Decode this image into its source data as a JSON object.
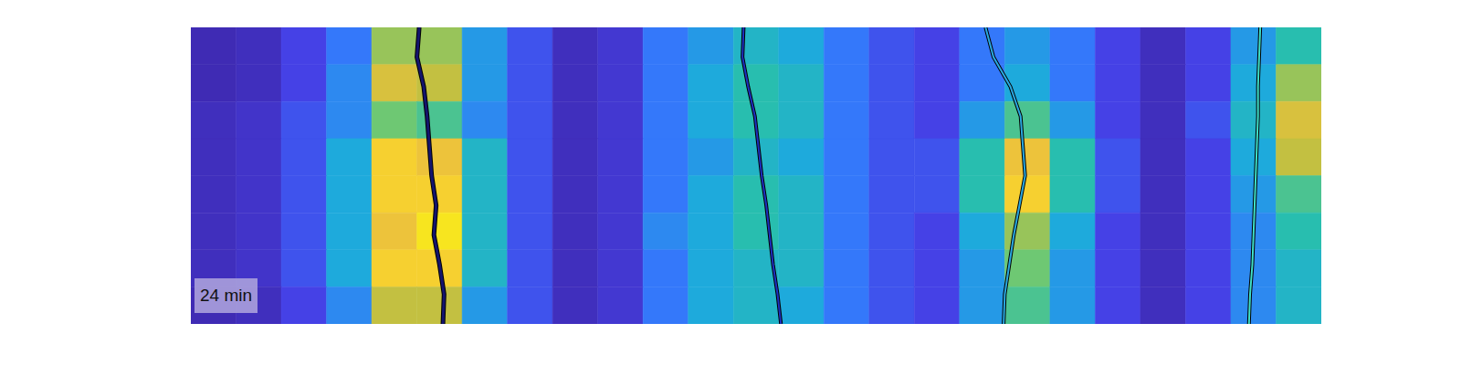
{
  "chart_data": {
    "type": "heatmap",
    "tick_labels": false,
    "xlim": [
      0,
      100
    ],
    "ylim": [
      0,
      100
    ],
    "clim": [
      0,
      1
    ],
    "annotations": [
      "24 min"
    ],
    "x_edges": [
      0,
      4,
      8,
      12,
      16,
      20,
      24,
      28,
      32,
      36,
      40,
      44,
      48,
      52,
      56,
      60,
      64,
      68,
      72,
      76,
      80,
      84,
      88,
      92,
      96,
      100
    ],
    "y_edges": [
      0,
      12.5,
      25,
      37.5,
      50,
      62.5,
      75,
      87.5,
      100
    ],
    "cells": [
      [
        0.03,
        0.05,
        0.15,
        0.3,
        0.7,
        0.7,
        0.4,
        0.2,
        0.05,
        0.1,
        0.3,
        0.4,
        0.5,
        0.45,
        0.3,
        0.2,
        0.15,
        0.3,
        0.4,
        0.3,
        0.15,
        0.05,
        0.15,
        0.4,
        0.55
      ],
      [
        0.03,
        0.05,
        0.15,
        0.35,
        0.8,
        0.75,
        0.4,
        0.2,
        0.05,
        0.1,
        0.3,
        0.45,
        0.55,
        0.5,
        0.3,
        0.2,
        0.15,
        0.3,
        0.45,
        0.3,
        0.15,
        0.05,
        0.15,
        0.45,
        0.7
      ],
      [
        0.05,
        0.08,
        0.2,
        0.35,
        0.65,
        0.6,
        0.35,
        0.2,
        0.05,
        0.1,
        0.3,
        0.45,
        0.55,
        0.5,
        0.3,
        0.2,
        0.15,
        0.4,
        0.6,
        0.4,
        0.15,
        0.05,
        0.2,
        0.5,
        0.8
      ],
      [
        0.05,
        0.08,
        0.2,
        0.45,
        0.9,
        0.85,
        0.5,
        0.2,
        0.05,
        0.1,
        0.3,
        0.4,
        0.5,
        0.45,
        0.3,
        0.2,
        0.2,
        0.55,
        0.85,
        0.55,
        0.2,
        0.05,
        0.15,
        0.45,
        0.75
      ],
      [
        0.05,
        0.08,
        0.2,
        0.45,
        0.9,
        0.9,
        0.5,
        0.2,
        0.05,
        0.1,
        0.3,
        0.45,
        0.55,
        0.5,
        0.3,
        0.2,
        0.2,
        0.55,
        0.9,
        0.55,
        0.2,
        0.05,
        0.15,
        0.4,
        0.6
      ],
      [
        0.05,
        0.08,
        0.2,
        0.45,
        0.85,
        0.95,
        0.5,
        0.2,
        0.05,
        0.1,
        0.35,
        0.45,
        0.55,
        0.5,
        0.3,
        0.2,
        0.15,
        0.45,
        0.7,
        0.45,
        0.15,
        0.05,
        0.15,
        0.35,
        0.55
      ],
      [
        0.05,
        0.08,
        0.2,
        0.45,
        0.9,
        0.9,
        0.5,
        0.2,
        0.05,
        0.1,
        0.3,
        0.45,
        0.5,
        0.5,
        0.3,
        0.2,
        0.15,
        0.4,
        0.65,
        0.4,
        0.15,
        0.05,
        0.15,
        0.35,
        0.5
      ],
      [
        0.03,
        0.05,
        0.15,
        0.35,
        0.75,
        0.75,
        0.4,
        0.2,
        0.05,
        0.1,
        0.3,
        0.45,
        0.5,
        0.45,
        0.3,
        0.2,
        0.15,
        0.4,
        0.6,
        0.4,
        0.15,
        0.05,
        0.15,
        0.35,
        0.5
      ]
    ],
    "series": [
      {
        "type": "line",
        "color": "#14146e",
        "line_style": "solid",
        "marker": "none",
        "x": [
          20.2,
          20.0,
          20.6,
          20.9,
          21.1,
          21.3,
          21.7,
          21.5,
          22.0,
          22.4,
          22.3
        ],
        "y": [
          0,
          10,
          20,
          30,
          40,
          50,
          60,
          70,
          80,
          90,
          100
        ]
      },
      {
        "type": "line",
        "color": "#1e30c0",
        "line_style": "solid",
        "marker": "none",
        "x": [
          48.9,
          48.8,
          49.3,
          49.9,
          50.2,
          50.5,
          50.9,
          51.2,
          51.5,
          51.9,
          52.2
        ],
        "y": [
          0,
          10,
          20,
          30,
          40,
          50,
          60,
          70,
          80,
          90,
          100
        ]
      },
      {
        "type": "line",
        "color": "#2aa8e0",
        "line_style": "solid",
        "marker": "none",
        "x": [
          70.3,
          71.0,
          72.5,
          73.4,
          73.6,
          73.8,
          73.3,
          72.8,
          72.4,
          72.0,
          71.9
        ],
        "y": [
          0,
          10,
          20,
          30,
          40,
          50,
          60,
          70,
          80,
          90,
          100
        ]
      },
      {
        "type": "line",
        "color": "#3fe0c8",
        "line_style": "solid",
        "marker": "none",
        "x": [
          94.6,
          94.5,
          94.4,
          94.4,
          94.3,
          94.2,
          94.1,
          94.0,
          93.9,
          93.7,
          93.6
        ],
        "y": [
          0,
          10,
          20,
          30,
          40,
          50,
          60,
          70,
          80,
          90,
          100
        ]
      }
    ]
  }
}
